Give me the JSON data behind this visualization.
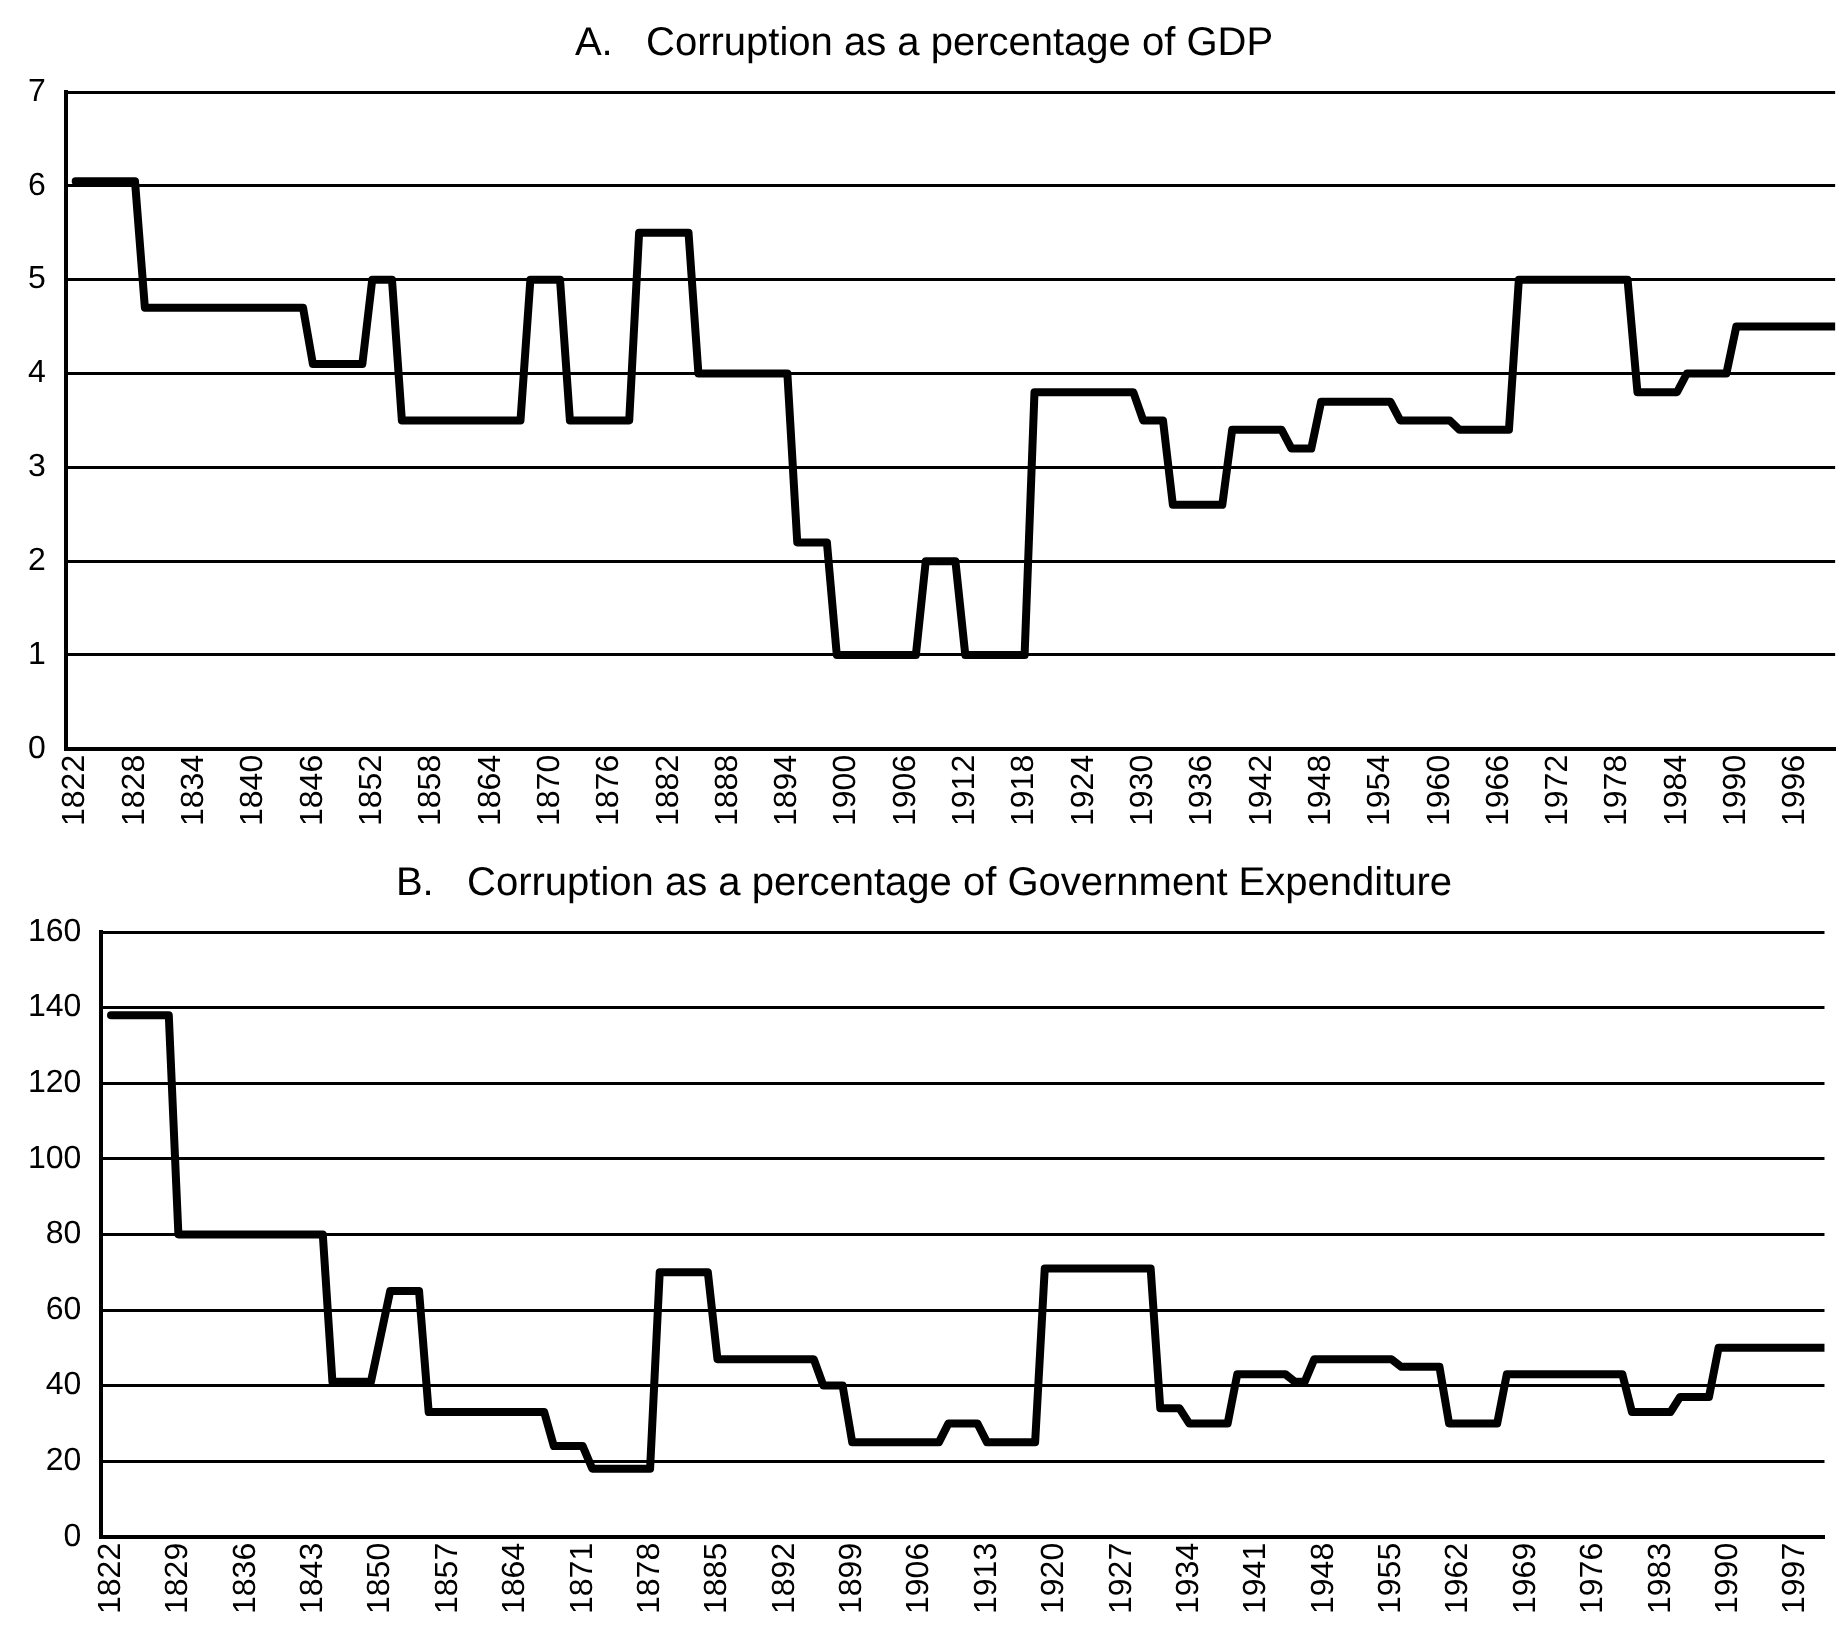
{
  "chart_data": [
    {
      "type": "line",
      "title": "A.   Corruption as a percentage of GDP",
      "color": "#000000",
      "marker": "none",
      "line_style": "solid",
      "grid": "y",
      "x": [
        1822,
        1828,
        1829,
        1845,
        1846,
        1851,
        1852,
        1854,
        1855,
        1867,
        1868,
        1871,
        1872,
        1878,
        1879,
        1884,
        1885,
        1894,
        1895,
        1898,
        1899,
        1907,
        1908,
        1911,
        1912,
        1918,
        1919,
        1929,
        1930,
        1932,
        1933,
        1938,
        1939,
        1944,
        1945,
        1947,
        1948,
        1955,
        1956,
        1961,
        1962,
        1967,
        1968,
        1979,
        1980,
        1984,
        1985,
        1989,
        1990,
        2000
      ],
      "values": [
        6.05,
        6.05,
        4.7,
        4.7,
        4.1,
        4.1,
        5,
        5,
        3.5,
        3.5,
        5,
        5,
        3.5,
        3.5,
        5.5,
        5.5,
        4,
        4,
        2.2,
        2.2,
        1,
        1,
        2,
        2,
        1,
        1,
        3.8,
        3.8,
        3.5,
        3.5,
        2.6,
        2.6,
        3.4,
        3.4,
        3.2,
        3.2,
        3.7,
        3.7,
        3.5,
        3.5,
        3.4,
        3.4,
        5,
        5,
        3.8,
        3.8,
        4,
        4,
        4.5,
        4.5
      ],
      "xlim": [
        1821,
        2000
      ],
      "xticks": [
        1822,
        1828,
        1834,
        1840,
        1846,
        1852,
        1858,
        1864,
        1870,
        1876,
        1882,
        1888,
        1894,
        1900,
        1906,
        1912,
        1918,
        1924,
        1930,
        1936,
        1942,
        1948,
        1954,
        1960,
        1966,
        1972,
        1978,
        1984,
        1990,
        1996
      ],
      "ylim": [
        0,
        7
      ],
      "yticks": [
        0,
        1,
        2,
        3,
        4,
        5,
        6,
        7
      ]
    },
    {
      "type": "line",
      "title": "B.   Corruption as a percentage of Government Expenditure",
      "color": "#000000",
      "marker": "none",
      "line_style": "solid",
      "grid": "y",
      "x": [
        1822,
        1828,
        1829,
        1844,
        1845,
        1849,
        1851,
        1854,
        1855,
        1867,
        1868,
        1871,
        1872,
        1878,
        1879,
        1884,
        1885,
        1895,
        1896,
        1898,
        1899,
        1908,
        1909,
        1912,
        1913,
        1918,
        1919,
        1930,
        1931,
        1933,
        1934,
        1938,
        1939,
        1944,
        1945,
        1946,
        1947,
        1955,
        1956,
        1960,
        1961,
        1966,
        1967,
        1979,
        1980,
        1984,
        1985,
        1988,
        1989,
        2000
      ],
      "values": [
        138,
        138,
        80,
        80,
        41,
        41,
        65,
        65,
        33,
        33,
        24,
        24,
        18,
        18,
        70,
        70,
        47,
        47,
        40,
        40,
        25,
        25,
        30,
        30,
        25,
        25,
        71,
        71,
        34,
        34,
        30,
        30,
        43,
        43,
        41,
        41,
        47,
        47,
        45,
        45,
        30,
        30,
        43,
        43,
        33,
        33,
        37,
        37,
        50,
        50
      ],
      "xlim": [
        1821,
        2000
      ],
      "xticks": [
        1822,
        1829,
        1836,
        1843,
        1850,
        1857,
        1864,
        1871,
        1878,
        1885,
        1892,
        1899,
        1906,
        1913,
        1920,
        1927,
        1934,
        1941,
        1948,
        1955,
        1962,
        1969,
        1976,
        1983,
        1990,
        1997
      ],
      "ylim": [
        0,
        160
      ],
      "yticks": [
        0,
        20,
        40,
        60,
        80,
        100,
        120,
        140,
        160
      ]
    }
  ]
}
